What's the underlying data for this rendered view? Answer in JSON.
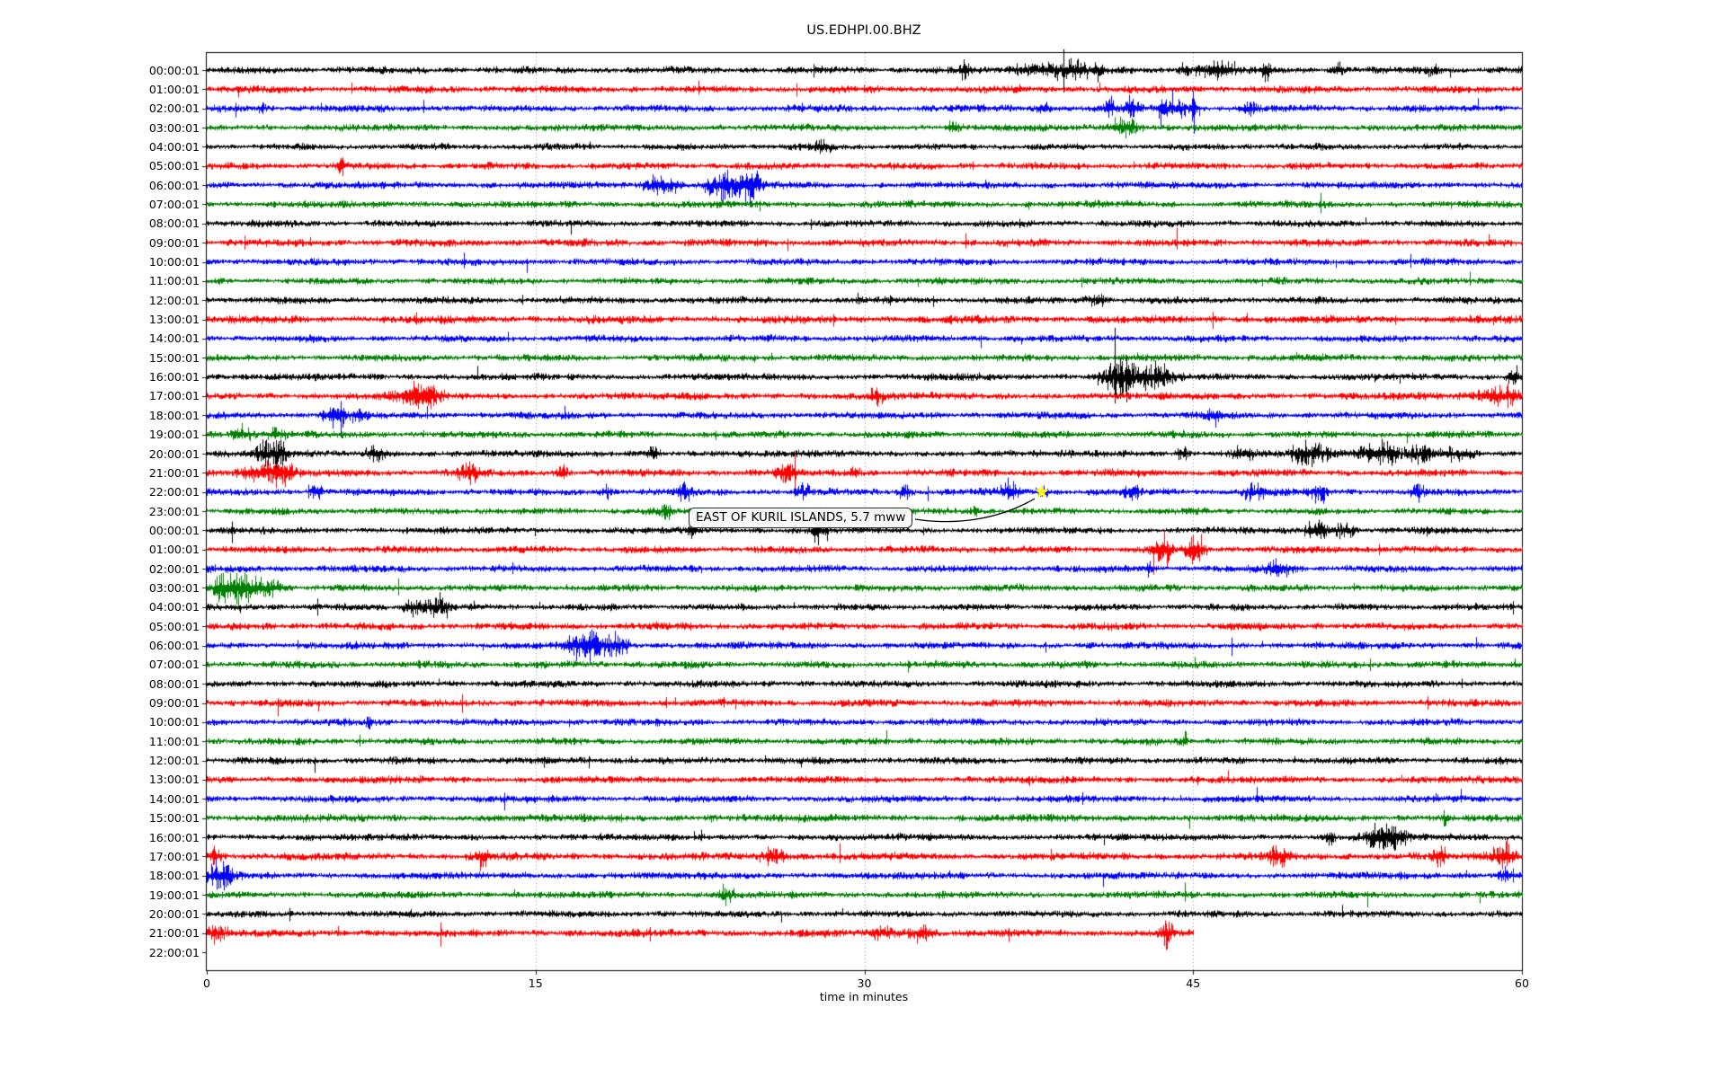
{
  "figure": {
    "title": "US.EDHPI.00.BHZ",
    "x_axis_title": "time in minutes",
    "background": "#ffffff"
  },
  "annotation": {
    "text": "EAST OF KURIL ISLANDS, 5.7 mww",
    "marker": "star",
    "marker_color": "#ffff00",
    "target_row_index": 22,
    "target_minute": 38.1
  },
  "colors": {
    "black": "#000000",
    "red": "#ff0000",
    "blue": "#0000ff",
    "green": "#008000",
    "grid": "#7f7f7f",
    "axis": "#000000",
    "star_fill": "#ffff00",
    "arrow": "#000000"
  },
  "chart_data": {
    "type": "line",
    "subtype": "helicorder-dayplot",
    "title": "US.EDHPI.00.BHZ",
    "xlabel": "time in minutes",
    "x_range_minutes": [
      0,
      60
    ],
    "x_ticks": [
      0,
      15,
      30,
      45,
      60
    ],
    "grid": {
      "vertical_dotted_at": [
        15,
        30,
        45
      ]
    },
    "trace_color_cycle": [
      "black",
      "red",
      "blue",
      "green"
    ],
    "events_format": "[center_minute, half_width_minutes, relative_amplitude]",
    "rows": [
      {
        "label": "00:00:01",
        "color": "black",
        "amp": 2.4,
        "extent": [
          0,
          60
        ],
        "events": [
          [
            34.5,
            0.15,
            2.0
          ],
          [
            37.6,
            0.5,
            2.2
          ],
          [
            39.2,
            0.6,
            3.0
          ],
          [
            40.7,
            0.15,
            2.0
          ],
          [
            44.6,
            0.2,
            2.0
          ],
          [
            46.0,
            0.5,
            2.5
          ],
          [
            48.3,
            0.15,
            2.2
          ],
          [
            51.5,
            0.2,
            1.6
          ],
          [
            56.0,
            0.2,
            1.6
          ]
        ]
      },
      {
        "label": "01:00:01",
        "color": "red",
        "amp": 2.5,
        "extent": [
          0,
          60
        ],
        "events": []
      },
      {
        "label": "02:00:01",
        "color": "blue",
        "amp": 2.4,
        "extent": [
          0,
          60
        ],
        "events": [
          [
            2.5,
            0.1,
            3.5
          ],
          [
            38.2,
            0.2,
            2.0
          ],
          [
            41.2,
            0.15,
            3.0
          ],
          [
            42.2,
            0.2,
            3.0
          ],
          [
            43.6,
            0.15,
            4.0
          ],
          [
            44.4,
            0.3,
            3.0
          ],
          [
            45.0,
            0.08,
            6.5
          ],
          [
            47.5,
            0.2,
            1.8
          ]
        ]
      },
      {
        "label": "03:00:01",
        "color": "green",
        "amp": 2.4,
        "extent": [
          0,
          60
        ],
        "events": [
          [
            34.0,
            0.2,
            1.5
          ],
          [
            41.8,
            0.5,
            2.6
          ]
        ]
      },
      {
        "label": "04:00:01",
        "color": "black",
        "amp": 2.2,
        "extent": [
          0,
          60
        ],
        "events": [
          [
            28.0,
            0.3,
            1.4
          ]
        ]
      },
      {
        "label": "05:00:01",
        "color": "red",
        "amp": 2.4,
        "extent": [
          0,
          60
        ],
        "events": [
          [
            6.1,
            0.07,
            3.5
          ]
        ]
      },
      {
        "label": "06:00:01",
        "color": "blue",
        "amp": 2.4,
        "extent": [
          0,
          60
        ],
        "events": [
          [
            20.4,
            0.4,
            2.4
          ],
          [
            21.3,
            0.3,
            2.0
          ],
          [
            23.0,
            0.3,
            2.2
          ],
          [
            24.0,
            0.5,
            3.0
          ],
          [
            24.9,
            0.3,
            2.4
          ]
        ]
      },
      {
        "label": "07:00:01",
        "color": "green",
        "amp": 2.4,
        "extent": [
          0,
          60
        ],
        "events": []
      },
      {
        "label": "08:00:01",
        "color": "black",
        "amp": 2.3,
        "extent": [
          0,
          60
        ],
        "events": []
      },
      {
        "label": "09:00:01",
        "color": "red",
        "amp": 2.6,
        "extent": [
          0,
          60
        ],
        "events": []
      },
      {
        "label": "10:00:01",
        "color": "blue",
        "amp": 2.4,
        "extent": [
          0,
          60
        ],
        "events": []
      },
      {
        "label": "11:00:01",
        "color": "green",
        "amp": 2.3,
        "extent": [
          0,
          60
        ],
        "events": []
      },
      {
        "label": "12:00:01",
        "color": "black",
        "amp": 2.4,
        "extent": [
          0,
          60
        ],
        "events": [
          [
            40.5,
            0.3,
            1.5
          ]
        ]
      },
      {
        "label": "13:00:01",
        "color": "red",
        "amp": 2.7,
        "extent": [
          0,
          60
        ],
        "events": []
      },
      {
        "label": "14:00:01",
        "color": "blue",
        "amp": 2.4,
        "extent": [
          0,
          60
        ],
        "events": []
      },
      {
        "label": "15:00:01",
        "color": "green",
        "amp": 2.4,
        "extent": [
          0,
          60
        ],
        "events": []
      },
      {
        "label": "16:00:01",
        "color": "black",
        "amp": 2.4,
        "extent": [
          0,
          60
        ],
        "events": [
          [
            41.3,
            0.4,
            3.8
          ],
          [
            42.3,
            0.7,
            2.6
          ],
          [
            43.6,
            0.4,
            1.8
          ],
          [
            59.6,
            0.2,
            2.8
          ]
        ]
      },
      {
        "label": "17:00:01",
        "color": "red",
        "amp": 2.5,
        "extent": [
          0,
          60
        ],
        "events": [
          [
            9.4,
            0.5,
            2.6
          ],
          [
            10.3,
            0.3,
            2.2
          ],
          [
            30.5,
            0.2,
            1.6
          ],
          [
            58.6,
            0.4,
            2.4
          ],
          [
            59.5,
            0.3,
            2.8
          ]
        ]
      },
      {
        "label": "18:00:01",
        "color": "blue",
        "amp": 2.4,
        "extent": [
          0,
          60
        ],
        "events": [
          [
            5.9,
            0.4,
            2.6
          ],
          [
            7.0,
            0.2,
            1.8
          ],
          [
            45.9,
            0.2,
            2.2
          ]
        ]
      },
      {
        "label": "19:00:01",
        "color": "green",
        "amp": 2.4,
        "extent": [
          0,
          60
        ],
        "events": [
          [
            1.7,
            0.3,
            2.4
          ],
          [
            3.1,
            0.3,
            2.0
          ]
        ]
      },
      {
        "label": "20:00:01",
        "color": "black",
        "amp": 2.4,
        "extent": [
          0,
          60
        ],
        "events": [
          [
            2.7,
            0.3,
            2.4
          ],
          [
            3.4,
            0.25,
            2.4
          ],
          [
            7.8,
            0.3,
            2.8
          ],
          [
            20.3,
            0.2,
            2.6
          ],
          [
            44.5,
            0.2,
            1.8
          ],
          [
            47.2,
            0.5,
            2.0
          ],
          [
            50.2,
            0.6,
            2.2
          ],
          [
            53.6,
            0.6,
            2.2
          ],
          [
            55.6,
            0.5,
            2.5
          ],
          [
            57.2,
            0.4,
            2.3
          ]
        ]
      },
      {
        "label": "21:00:01",
        "color": "red",
        "amp": 2.5,
        "extent": [
          0,
          60
        ],
        "events": [
          [
            2.5,
            0.6,
            3.2
          ],
          [
            3.6,
            0.4,
            2.4
          ],
          [
            11.9,
            0.3,
            2.2
          ],
          [
            16.2,
            0.2,
            1.8
          ],
          [
            26.4,
            0.3,
            1.8
          ],
          [
            29.5,
            0.2,
            1.6
          ]
        ]
      },
      {
        "label": "22:00:01",
        "color": "blue",
        "amp": 2.4,
        "extent": [
          0,
          60
        ],
        "events": [
          [
            5.0,
            0.2,
            2.0
          ],
          [
            18.2,
            0.2,
            1.8
          ],
          [
            21.8,
            0.2,
            2.0
          ],
          [
            27.2,
            0.2,
            1.8
          ],
          [
            31.8,
            0.2,
            1.8
          ],
          [
            36.6,
            0.3,
            2.0
          ],
          [
            38.1,
            0.2,
            1.8
          ],
          [
            42.2,
            0.2,
            2.0
          ],
          [
            47.8,
            0.3,
            2.2
          ],
          [
            50.8,
            0.25,
            2.0
          ],
          [
            55.2,
            0.2,
            1.6
          ]
        ]
      },
      {
        "label": "23:00:01",
        "color": "green",
        "amp": 2.3,
        "extent": [
          0,
          60
        ],
        "events": [
          [
            21.0,
            0.2,
            1.5
          ],
          [
            35.0,
            0.2,
            1.5
          ]
        ]
      },
      {
        "label": "00:00:01",
        "color": "black",
        "amp": 2.3,
        "extent": [
          0,
          60
        ],
        "events": [
          [
            22.2,
            0.15,
            1.8
          ],
          [
            27.8,
            0.2,
            2.6
          ],
          [
            50.7,
            0.5,
            2.8
          ],
          [
            51.8,
            0.3,
            2.2
          ]
        ]
      },
      {
        "label": "01:00:01",
        "color": "red",
        "amp": 2.5,
        "extent": [
          0,
          60
        ],
        "events": [
          [
            43.6,
            0.3,
            2.8
          ],
          [
            45.1,
            0.3,
            2.6
          ]
        ]
      },
      {
        "label": "02:00:01",
        "color": "blue",
        "amp": 2.4,
        "extent": [
          0,
          60
        ],
        "events": [
          [
            43.0,
            0.15,
            1.8
          ],
          [
            48.9,
            0.4,
            2.4
          ]
        ]
      },
      {
        "label": "03:00:01",
        "color": "green",
        "amp": 2.4,
        "extent": [
          0,
          60
        ],
        "events": [
          [
            0.9,
            0.4,
            2.8
          ],
          [
            1.9,
            0.5,
            2.4
          ],
          [
            3.1,
            0.3,
            2.0
          ]
        ]
      },
      {
        "label": "04:00:01",
        "color": "black",
        "amp": 2.3,
        "extent": [
          0,
          60
        ],
        "events": [
          [
            9.2,
            0.2,
            2.2
          ],
          [
            9.9,
            0.3,
            3.0
          ],
          [
            10.7,
            0.25,
            2.6
          ]
        ]
      },
      {
        "label": "05:00:01",
        "color": "red",
        "amp": 2.5,
        "extent": [
          0,
          60
        ],
        "events": []
      },
      {
        "label": "06:00:01",
        "color": "blue",
        "amp": 2.4,
        "extent": [
          0,
          60
        ],
        "events": [
          [
            17.0,
            0.4,
            2.4
          ],
          [
            17.9,
            0.4,
            2.8
          ],
          [
            18.8,
            0.3,
            2.2
          ]
        ]
      },
      {
        "label": "07:00:01",
        "color": "green",
        "amp": 2.5,
        "extent": [
          0,
          60
        ],
        "events": []
      },
      {
        "label": "08:00:01",
        "color": "black",
        "amp": 2.4,
        "extent": [
          0,
          60
        ],
        "events": []
      },
      {
        "label": "09:00:01",
        "color": "red",
        "amp": 2.5,
        "extent": [
          0,
          60
        ],
        "events": []
      },
      {
        "label": "10:00:01",
        "color": "blue",
        "amp": 2.4,
        "extent": [
          0,
          60
        ],
        "events": [
          [
            7.4,
            0.08,
            2.8
          ]
        ]
      },
      {
        "label": "11:00:01",
        "color": "green",
        "amp": 2.4,
        "extent": [
          0,
          60
        ],
        "events": [
          [
            44.6,
            0.06,
            3.2
          ]
        ]
      },
      {
        "label": "12:00:01",
        "color": "black",
        "amp": 2.4,
        "extent": [
          0,
          60
        ],
        "events": []
      },
      {
        "label": "13:00:01",
        "color": "red",
        "amp": 2.5,
        "extent": [
          0,
          60
        ],
        "events": []
      },
      {
        "label": "14:00:01",
        "color": "blue",
        "amp": 2.4,
        "extent": [
          0,
          60
        ],
        "events": []
      },
      {
        "label": "15:00:01",
        "color": "green",
        "amp": 2.6,
        "extent": [
          0,
          60
        ],
        "events": [
          [
            56.5,
            0.1,
            2.2
          ]
        ]
      },
      {
        "label": "16:00:01",
        "color": "black",
        "amp": 2.4,
        "extent": [
          0,
          60
        ],
        "events": [
          [
            51.2,
            0.2,
            1.8
          ],
          [
            53.4,
            0.4,
            3.2
          ],
          [
            54.3,
            0.3,
            2.8
          ]
        ]
      },
      {
        "label": "17:00:01",
        "color": "red",
        "amp": 2.6,
        "extent": [
          0,
          60
        ],
        "events": [
          [
            0.3,
            0.2,
            2.4
          ],
          [
            12.5,
            0.2,
            1.8
          ],
          [
            25.9,
            0.4,
            2.4
          ],
          [
            48.9,
            0.3,
            2.2
          ],
          [
            56.2,
            0.2,
            1.8
          ],
          [
            59.1,
            0.4,
            2.8
          ]
        ]
      },
      {
        "label": "18:00:01",
        "color": "blue",
        "amp": 2.4,
        "extent": [
          0,
          60
        ],
        "events": [
          [
            0.6,
            0.4,
            2.8
          ],
          [
            59.3,
            0.3,
            2.4
          ]
        ]
      },
      {
        "label": "19:00:01",
        "color": "green",
        "amp": 2.4,
        "extent": [
          0,
          60
        ],
        "events": [
          [
            23.7,
            0.3,
            1.8
          ]
        ]
      },
      {
        "label": "20:00:01",
        "color": "black",
        "amp": 2.3,
        "extent": [
          0,
          60
        ],
        "events": []
      },
      {
        "label": "21:00:01",
        "color": "red",
        "amp": 2.6,
        "extent": [
          0,
          45.0
        ],
        "events": [
          [
            0.5,
            0.3,
            2.0
          ],
          [
            30.9,
            0.3,
            2.6
          ],
          [
            32.5,
            0.4,
            2.4
          ],
          [
            43.8,
            0.15,
            2.8
          ]
        ]
      },
      {
        "label": "22:00:01",
        "color": "black",
        "amp": 0,
        "extent": null,
        "empty": true,
        "events": []
      }
    ]
  }
}
